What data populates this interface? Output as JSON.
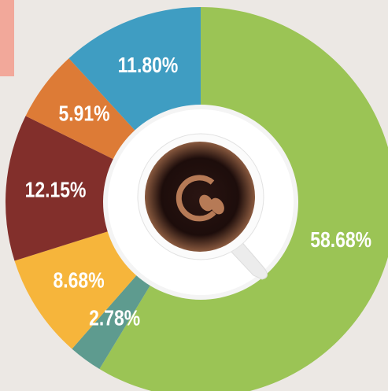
{
  "chart_data": {
    "type": "pie",
    "values": [
      58.68,
      2.78,
      8.68,
      12.15,
      5.91,
      11.8
    ],
    "value_labels": [
      "58.68%",
      "2.78%",
      "8.68%",
      "12.15%",
      "5.91%",
      "11.80%"
    ],
    "colors": [
      "#9bc455",
      "#5e9b8f",
      "#f6b53b",
      "#822f2b",
      "#dd7b36",
      "#3f9dc2"
    ]
  }
}
